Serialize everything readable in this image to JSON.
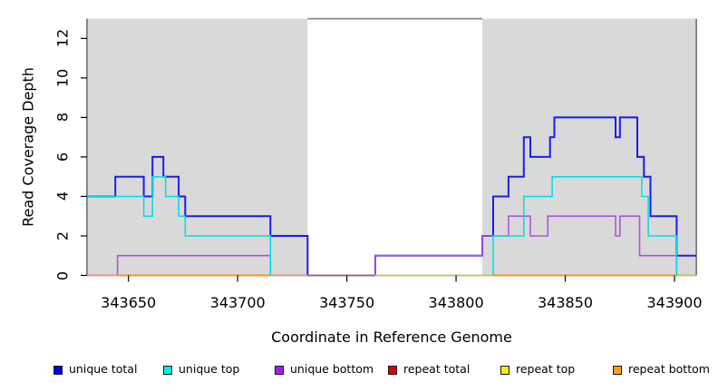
{
  "chart_data": {
    "type": "line",
    "subtype": "step-coverage",
    "xlabel": "Coordinate in Reference Genome",
    "ylabel": "Read Coverage Depth",
    "xlim": [
      343631,
      343910
    ],
    "ylim": [
      0,
      13
    ],
    "grid": false,
    "x_ticks": {
      "values": [
        343650,
        343700,
        343750,
        343800,
        343850,
        343900
      ],
      "labels": [
        "343650",
        "343700",
        "343750",
        "343800",
        "343850",
        "343900"
      ]
    },
    "y_ticks": {
      "values": [
        0,
        2,
        4,
        6,
        8,
        10,
        12
      ],
      "labels": [
        "0",
        "2",
        "4",
        "6",
        "8",
        "10",
        "12"
      ]
    },
    "shaded_regions": [
      {
        "from": 343631,
        "to": 343732,
        "color": "#d9d9d9"
      },
      {
        "from": 343812,
        "to": 343910,
        "color": "#d9d9d9"
      }
    ],
    "series": [
      {
        "name": "unique total",
        "color": "#1b1bf0",
        "width": 2.0,
        "points": [
          [
            343631,
            4
          ],
          [
            343644,
            5
          ],
          [
            343657,
            4
          ],
          [
            343661,
            6
          ],
          [
            343666,
            5
          ],
          [
            343673,
            4
          ],
          [
            343676,
            3
          ],
          [
            343715,
            2
          ],
          [
            343732,
            0
          ],
          [
            343763,
            1
          ],
          [
            343812,
            2
          ],
          [
            343817,
            4
          ],
          [
            343824,
            5
          ],
          [
            343831,
            7
          ],
          [
            343834,
            6
          ],
          [
            343843,
            7
          ],
          [
            343845,
            8
          ],
          [
            343873,
            7
          ],
          [
            343875,
            8
          ],
          [
            343883,
            6
          ],
          [
            343886,
            5
          ],
          [
            343889,
            3
          ],
          [
            343901,
            1
          ],
          [
            343910,
            1
          ]
        ]
      },
      {
        "name": "unique bottom",
        "color": "#aa55dd",
        "width": 1.6,
        "points": [
          [
            343631,
            0
          ],
          [
            343645,
            1
          ],
          [
            343715,
            0
          ],
          [
            343763,
            1
          ],
          [
            343812,
            2
          ],
          [
            343824,
            3
          ],
          [
            343834,
            2
          ],
          [
            343842,
            3
          ],
          [
            343873,
            2
          ],
          [
            343875,
            3
          ],
          [
            343884,
            1
          ],
          [
            343901,
            0
          ],
          [
            343910,
            0
          ]
        ]
      },
      {
        "name": "unique top",
        "color": "#00dce6",
        "width": 1.5,
        "points": [
          [
            343631,
            4
          ],
          [
            343657,
            3
          ],
          [
            343661,
            5
          ],
          [
            343667,
            4
          ],
          [
            343673,
            3
          ],
          [
            343676,
            2
          ],
          [
            343715,
            0
          ],
          [
            343817,
            2
          ],
          [
            343831,
            4
          ],
          [
            343844,
            5
          ],
          [
            343885,
            4
          ],
          [
            343888,
            2
          ],
          [
            343901,
            0
          ],
          [
            343910,
            0
          ]
        ]
      },
      {
        "name": "repeat total",
        "color": "#dd0000",
        "width": 1.2,
        "points": [
          [
            343631,
            0
          ],
          [
            343910,
            0
          ]
        ]
      },
      {
        "name": "repeat top",
        "color": "#eeee00",
        "width": 1.2,
        "points": [
          [
            343631,
            0
          ],
          [
            343910,
            0
          ]
        ]
      },
      {
        "name": "repeat bottom",
        "color": "#ff9012",
        "width": 1.4,
        "points": [
          [
            343631,
            0
          ],
          [
            343910,
            0
          ]
        ]
      }
    ],
    "zero_line_segments": [
      {
        "from": 343631,
        "to": 343645,
        "color": "#da96d2"
      },
      {
        "from": 343645,
        "to": 343715,
        "color": "#ff9012"
      },
      {
        "from": 343715,
        "to": 343732,
        "color": "#da96d2"
      },
      {
        "from": 343732,
        "to": 343763,
        "color": "#6f63d8"
      },
      {
        "from": 343763,
        "to": 343817,
        "color": "#94dd94"
      },
      {
        "from": 343817,
        "to": 343901,
        "color": "#ff9012"
      },
      {
        "from": 343901,
        "to": 343910,
        "color": "#94dd94"
      }
    ],
    "legend": [
      {
        "label": "unique total",
        "color": "#0000ee"
      },
      {
        "label": "unique top",
        "color": "#00eeee"
      },
      {
        "label": "unique bottom",
        "color": "#a020f0"
      },
      {
        "label": "repeat total",
        "color": "#dd0000"
      },
      {
        "label": "repeat top",
        "color": "#f2f200"
      },
      {
        "label": "repeat bottom",
        "color": "#ffa018"
      }
    ],
    "legend_position": "bottom",
    "colors": {
      "background": "#ffffff",
      "shading": "#d9d9d9",
      "axis": "#262626",
      "gap_top_border": "#8a8a8a"
    }
  }
}
